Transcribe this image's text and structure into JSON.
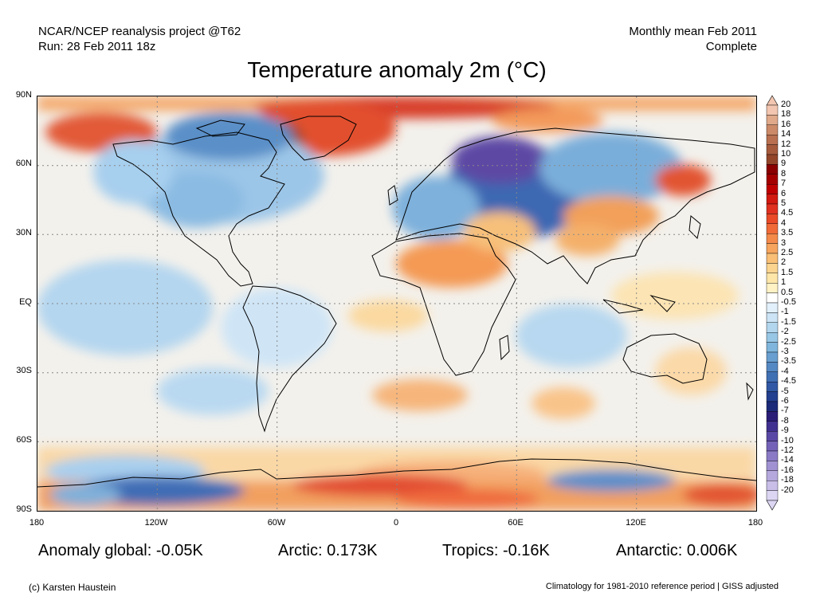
{
  "header": {
    "project": "NCAR/NCEP reanalysis project @T62",
    "run": "Run: 28 Feb 2011 18z",
    "period": "Monthly mean Feb 2011",
    "status": "Complete"
  },
  "title": "Temperature anomaly 2m (°C)",
  "axes": {
    "lat_labels": [
      "90N",
      "60N",
      "30N",
      "EQ",
      "30S",
      "60S",
      "90S"
    ],
    "lon_labels": [
      "180",
      "120W",
      "60W",
      "0",
      "60E",
      "120E",
      "180"
    ]
  },
  "colorbar": {
    "labels": [
      "20",
      "18",
      "16",
      "14",
      "12",
      "10",
      "9",
      "8",
      "7",
      "6",
      "5",
      "4.5",
      "4",
      "3.5",
      "3",
      "2.5",
      "2",
      "1.5",
      "1",
      "0.5",
      "-0.5",
      "-1",
      "-1.5",
      "-2",
      "-2.5",
      "-3",
      "-3.5",
      "-4",
      "-4.5",
      "-5",
      "-6",
      "-7",
      "-8",
      "-9",
      "-10",
      "-12",
      "-14",
      "-16",
      "-18",
      "-20"
    ],
    "colors": [
      "#f2c6b0",
      "#e0a98a",
      "#cc8a68",
      "#b87050",
      "#a65a3c",
      "#93452a",
      "#8b0000",
      "#a40000",
      "#bf0000",
      "#d21a10",
      "#e03020",
      "#ea4a28",
      "#f06a38",
      "#f48a4a",
      "#f7a55e",
      "#f9bf76",
      "#fbd590",
      "#fde6a8",
      "#fff2c4",
      "#ffffff",
      "#e2f0fb",
      "#cce4f5",
      "#b2d6ee",
      "#98c7e6",
      "#80b6dd",
      "#699fd0",
      "#5489c4",
      "#4070b4",
      "#3058a4",
      "#233f8f",
      "#1c2a7a",
      "#2a1d78",
      "#40308f",
      "#5a48a6",
      "#7462b8",
      "#8a7ac6",
      "#a092d2",
      "#b4a8dd",
      "#c8bee8",
      "#ddd6f3"
    ]
  },
  "stats": {
    "global": "Anomaly global: -0.05K",
    "arctic": "Arctic: 0.173K",
    "tropics": "Tropics: -0.16K",
    "antarctic": "Antarctic: 0.006K"
  },
  "footer": {
    "copyright": "(c) Karsten Haustein",
    "climatology": "Climatology for 1981-2010 reference period | GISS adjusted"
  }
}
